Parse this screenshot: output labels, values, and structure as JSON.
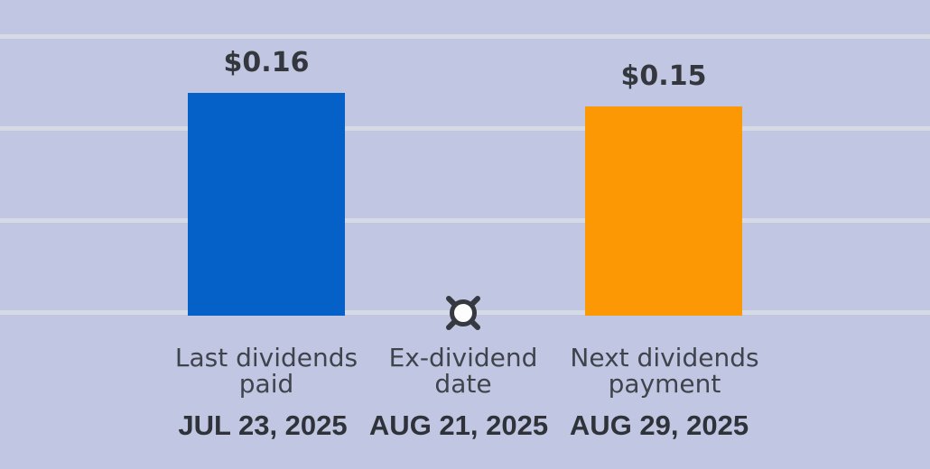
{
  "chart_data": {
    "type": "bar",
    "title": "",
    "xlabel": "",
    "ylabel": "",
    "ylim": [
      0,
      0.18
    ],
    "grid": "horizontal-only",
    "legend": "none",
    "categories": [
      "Last dividends paid",
      "Ex-dividend date",
      "Next dividends payment"
    ],
    "x_tick_dates": [
      "JUL 23, 2025",
      "AUG 21, 2025",
      "AUG 29, 2025"
    ],
    "values": [
      0.16,
      null,
      0.15
    ],
    "columns": [
      {
        "label_lines": [
          "Last dividends",
          "paid"
        ],
        "date": "JUL 23, 2025",
        "value": 0.16,
        "value_label": "$0.16",
        "bar_color": "#0561c8",
        "kind": "bar"
      },
      {
        "label_lines": [
          "Ex-dividend",
          "date"
        ],
        "date": "AUG 21, 2025",
        "value": null,
        "value_label": "",
        "marker": "circle-x-open",
        "kind": "marker"
      },
      {
        "label_lines": [
          "Next dividends",
          "payment"
        ],
        "date": "AUG 29, 2025",
        "value": 0.15,
        "value_label": "$0.15",
        "bar_color": "#fb9804",
        "kind": "bar"
      }
    ]
  },
  "colors": {
    "background": "#c1c7e2",
    "gridline": "#d5dae4",
    "bar_blue": "#0561c8",
    "bar_orange": "#fb9804",
    "value_text": "#34383e",
    "category_text": "#3f444c",
    "date_text": "#2f3339",
    "marker_stroke": "#36393f",
    "marker_fill": "#fdfdfd"
  }
}
